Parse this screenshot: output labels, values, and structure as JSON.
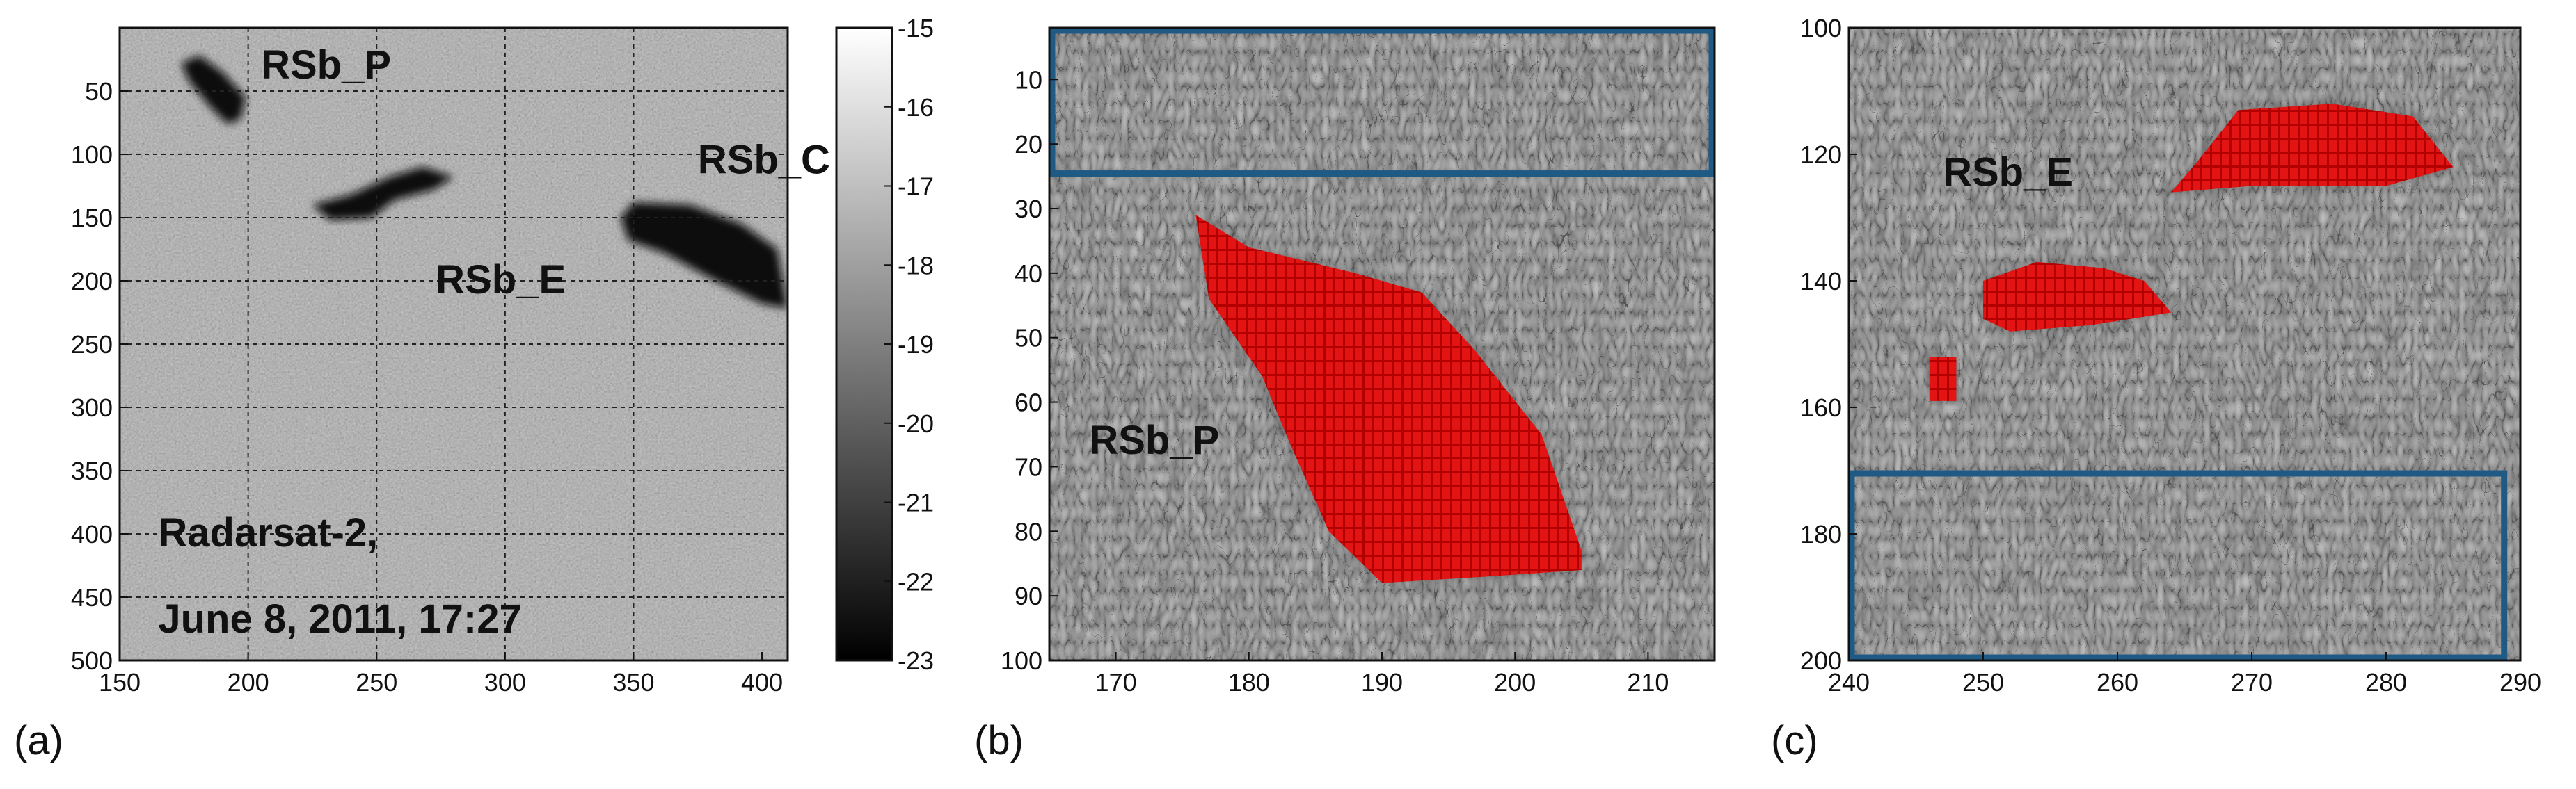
{
  "chart_data": [
    {
      "type": "heatmap",
      "panel_label": "(a)",
      "xlim": [
        150,
        410
      ],
      "ylim": [
        500,
        0
      ],
      "x_ticks": [
        150,
        200,
        250,
        300,
        350,
        400
      ],
      "y_ticks": [
        50,
        100,
        150,
        200,
        250,
        300,
        350,
        400,
        450,
        500
      ],
      "grid": true,
      "colorbar": {
        "range": [
          -23,
          -15
        ],
        "ticks": [
          -15,
          -16,
          -17,
          -18,
          -19,
          -20,
          -21,
          -22,
          -23
        ],
        "colormap": "gray"
      },
      "annotations": [
        {
          "text": "RSb_P",
          "x": 205,
          "y": 40
        },
        {
          "text": "RSb_C",
          "x": 375,
          "y": 115
        },
        {
          "text": "RSb_E",
          "x": 273,
          "y": 210
        },
        {
          "text": "Radarsat-2,",
          "x": 165,
          "y": 410
        },
        {
          "text": "June 8, 2011, 17:27",
          "x": 165,
          "y": 478
        }
      ],
      "dark_regions": [
        {
          "name": "RSb_P",
          "points": [
            [
              174,
              28
            ],
            [
              181,
              22
            ],
            [
              190,
              35
            ],
            [
              199,
              55
            ],
            [
              197,
              72
            ],
            [
              192,
              76
            ],
            [
              185,
              62
            ],
            [
              177,
              42
            ]
          ]
        },
        {
          "name": "RSb_E",
          "points": [
            [
              225,
              140
            ],
            [
              240,
              132
            ],
            [
              255,
              118
            ],
            [
              268,
              110
            ],
            [
              280,
              118
            ],
            [
              272,
              128
            ],
            [
              257,
              136
            ],
            [
              248,
              150
            ],
            [
              232,
              152
            ]
          ]
        },
        {
          "name": "RSb_C",
          "points": [
            [
              345,
              150
            ],
            [
              350,
              138
            ],
            [
              372,
              140
            ],
            [
              392,
              155
            ],
            [
              406,
              175
            ],
            [
              410,
              222
            ],
            [
              400,
              218
            ],
            [
              382,
              200
            ],
            [
              362,
              178
            ],
            [
              348,
              168
            ]
          ]
        }
      ]
    },
    {
      "type": "heatmap",
      "panel_label": "(b)",
      "xlim": [
        165,
        215
      ],
      "ylim": [
        100,
        2
      ],
      "x_ticks": [
        170,
        180,
        190,
        200,
        210
      ],
      "y_ticks": [
        10,
        20,
        30,
        40,
        50,
        60,
        70,
        80,
        90,
        100
      ],
      "annotations": [
        {
          "text": "RSb_P",
          "x": 168,
          "y": 68
        }
      ],
      "reference_box": {
        "x": [
          165,
          215
        ],
        "y": [
          2,
          25
        ],
        "color": "#1f5a85"
      },
      "detected_region": {
        "name": "RSb_P",
        "color": "#e21414",
        "points": [
          [
            176,
            31
          ],
          [
            180,
            36
          ],
          [
            188,
            40
          ],
          [
            193,
            43
          ],
          [
            197,
            52
          ],
          [
            202,
            65
          ],
          [
            205,
            83
          ],
          [
            205,
            86
          ],
          [
            198,
            87
          ],
          [
            190,
            88
          ],
          [
            186,
            80
          ],
          [
            183,
            66
          ],
          [
            181,
            56
          ],
          [
            177,
            44
          ]
        ]
      }
    },
    {
      "type": "heatmap",
      "panel_label": "(c)",
      "xlim": [
        240,
        290
      ],
      "ylim": [
        200,
        100
      ],
      "x_ticks": [
        240,
        250,
        260,
        270,
        280,
        290
      ],
      "y_ticks": [
        100,
        120,
        140,
        160,
        180,
        200
      ],
      "annotations": [
        {
          "text": "RSb_E",
          "x": 247,
          "y": 125
        }
      ],
      "reference_box": {
        "x": [
          240,
          289
        ],
        "y": [
          170,
          200
        ],
        "color": "#1f5a85"
      },
      "detected_regions": [
        {
          "name": "a",
          "points": [
            [
              246,
              152
            ],
            [
              248,
              152
            ],
            [
              248,
              159
            ],
            [
              246,
              159
            ]
          ]
        },
        {
          "name": "b",
          "points": [
            [
              250,
              140
            ],
            [
              254,
              137
            ],
            [
              259,
              138
            ],
            [
              262,
              140
            ],
            [
              264,
              145
            ],
            [
              258,
              147
            ],
            [
              252,
              148
            ],
            [
              250,
              146
            ]
          ]
        },
        {
          "name": "c",
          "points": [
            [
              264,
              126
            ],
            [
              266,
              121
            ],
            [
              269,
              113
            ],
            [
              276,
              112
            ],
            [
              282,
              114
            ],
            [
              285,
              122
            ],
            [
              280,
              125
            ],
            [
              270,
              125
            ]
          ]
        }
      ]
    }
  ]
}
